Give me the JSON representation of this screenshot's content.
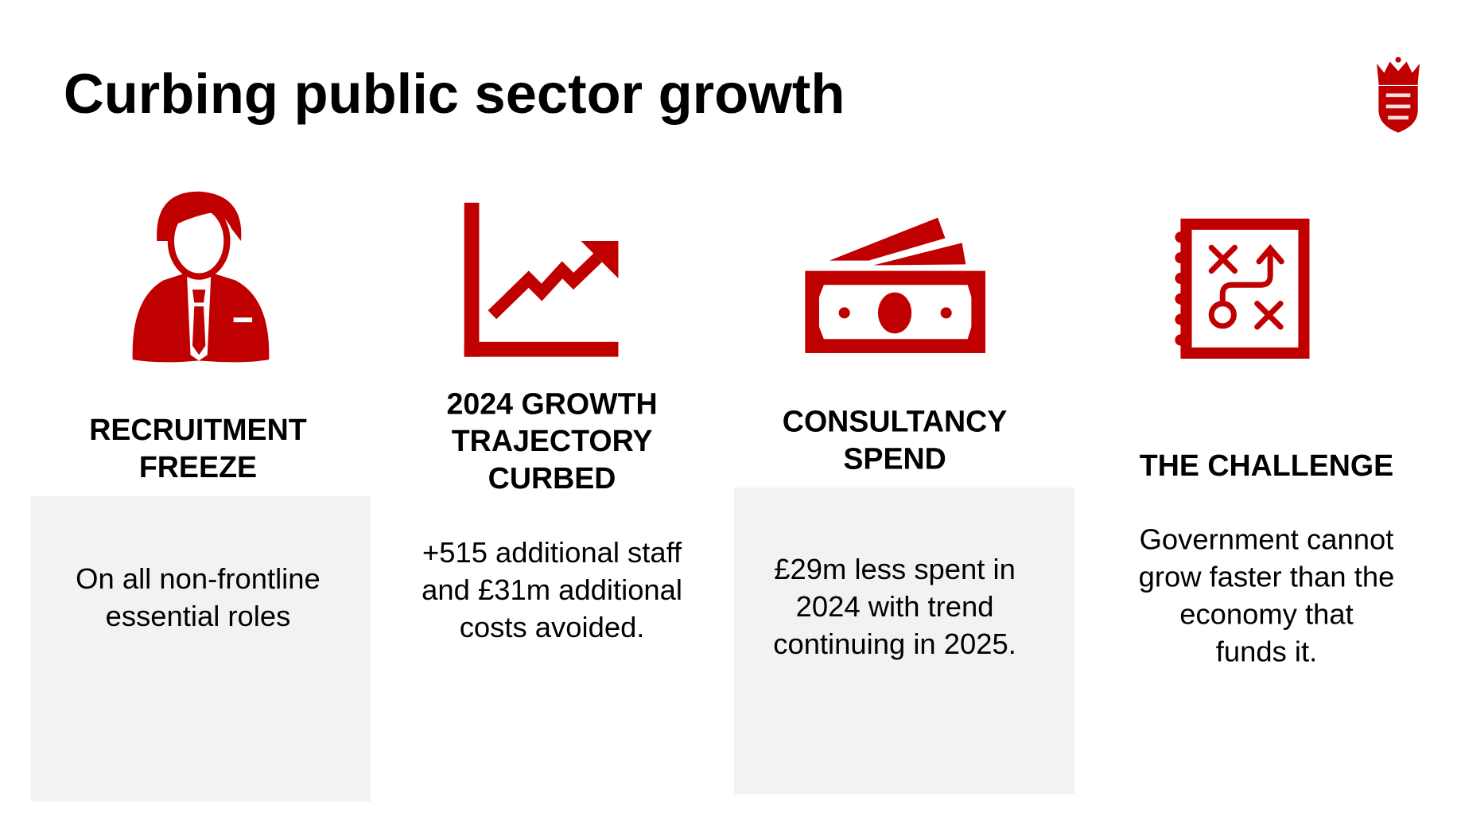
{
  "slide": {
    "title": "Curbing public sector growth",
    "logo": "States of Jersey crest (crown and shield with three lions)",
    "accent_color": "#C00000",
    "columns": [
      {
        "icon": "businessman-icon",
        "heading_lines": [
          "RECRUITMENT",
          "FREEZE"
        ],
        "body_lines": [
          "On all non-frontline",
          "essential roles"
        ]
      },
      {
        "icon": "growth-chart-icon",
        "heading_lines": [
          "2024 GROWTH",
          "TRAJECTORY",
          "CURBED"
        ],
        "body_lines": [
          "+515 additional staff",
          "and £31m additional",
          "costs avoided."
        ]
      },
      {
        "icon": "money-icon",
        "heading_lines": [
          "CONSULTANCY",
          "SPEND"
        ],
        "body_lines": [
          "£29m less spent in",
          "2024 with trend",
          "continuing in 2025."
        ]
      },
      {
        "icon": "strategy-notebook-icon",
        "heading_lines": [
          "THE CHALLENGE"
        ],
        "body_lines": [
          "Government cannot",
          "grow faster than the",
          "economy that",
          "funds it."
        ]
      }
    ]
  }
}
